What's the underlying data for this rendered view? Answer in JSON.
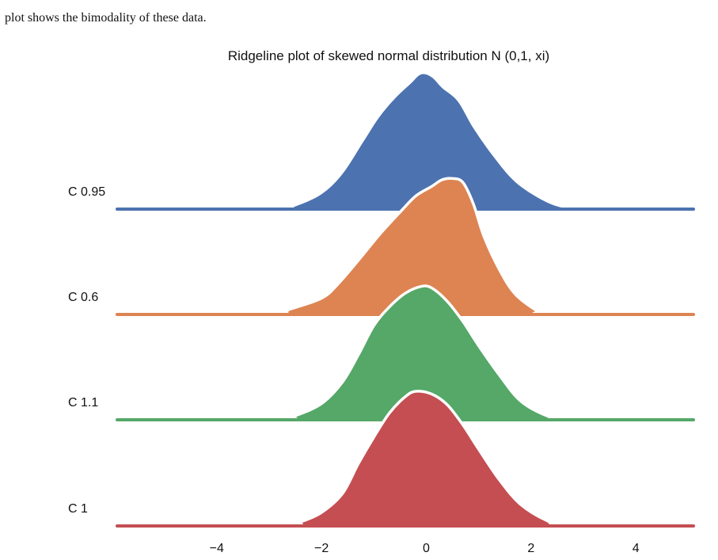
{
  "page": {
    "caption": "plot shows the bimodality of these data."
  },
  "chart_data": {
    "type": "area",
    "title": "Ridgeline plot of skewed normal distribution N (0,1, xi)",
    "xlabel": "",
    "ylabel": "",
    "xlim": [
      -5.9,
      5.1
    ],
    "x_ticks": [
      "−4",
      "−2",
      "0",
      "2",
      "4"
    ],
    "x_tick_values": [
      -4,
      -2,
      0,
      2,
      4
    ],
    "grid": false,
    "legend": "none",
    "series": [
      {
        "name": "C 0.95",
        "color": "#4C72B0",
        "density": [
          [
            -5.9,
            0
          ],
          [
            -2.8,
            0
          ],
          [
            -2.5,
            0.02
          ],
          [
            -2.0,
            0.11
          ],
          [
            -1.6,
            0.26
          ],
          [
            -1.2,
            0.5
          ],
          [
            -0.9,
            0.68
          ],
          [
            -0.6,
            0.82
          ],
          [
            -0.3,
            0.93
          ],
          [
            -0.1,
            1.0
          ],
          [
            0.1,
            0.98
          ],
          [
            0.3,
            0.9
          ],
          [
            0.6,
            0.8
          ],
          [
            0.9,
            0.6
          ],
          [
            1.3,
            0.38
          ],
          [
            1.7,
            0.2
          ],
          [
            2.2,
            0.07
          ],
          [
            2.6,
            0.01
          ],
          [
            3.0,
            0
          ],
          [
            5.1,
            0
          ]
        ]
      },
      {
        "name": "C 0.6",
        "color": "#DD8452",
        "density": [
          [
            -5.9,
            0
          ],
          [
            -3.0,
            0
          ],
          [
            -2.6,
            0.04
          ],
          [
            -2.0,
            0.12
          ],
          [
            -1.7,
            0.22
          ],
          [
            -1.3,
            0.4
          ],
          [
            -0.9,
            0.59
          ],
          [
            -0.5,
            0.76
          ],
          [
            -0.2,
            0.88
          ],
          [
            0.1,
            0.95
          ],
          [
            0.3,
            1.0
          ],
          [
            0.5,
            1.01
          ],
          [
            0.7,
            0.98
          ],
          [
            0.9,
            0.82
          ],
          [
            1.1,
            0.58
          ],
          [
            1.4,
            0.33
          ],
          [
            1.7,
            0.15
          ],
          [
            2.1,
            0.03
          ],
          [
            2.3,
            0
          ],
          [
            5.1,
            0
          ]
        ]
      },
      {
        "name": "C 1.1",
        "color": "#55A868",
        "density": [
          [
            -5.9,
            0
          ],
          [
            -2.8,
            0
          ],
          [
            -2.5,
            0.03
          ],
          [
            -2.0,
            0.12
          ],
          [
            -1.6,
            0.28
          ],
          [
            -1.3,
            0.48
          ],
          [
            -1.0,
            0.7
          ],
          [
            -0.7,
            0.84
          ],
          [
            -0.4,
            0.94
          ],
          [
            -0.1,
            0.99
          ],
          [
            0.1,
            0.98
          ],
          [
            0.4,
            0.88
          ],
          [
            0.7,
            0.73
          ],
          [
            1.0,
            0.55
          ],
          [
            1.4,
            0.33
          ],
          [
            1.8,
            0.14
          ],
          [
            2.3,
            0.03
          ],
          [
            2.7,
            0
          ],
          [
            5.1,
            0
          ]
        ]
      },
      {
        "name": "C 1",
        "color": "#C44E52",
        "density": [
          [
            -5.9,
            0
          ],
          [
            -2.7,
            0
          ],
          [
            -2.4,
            0.03
          ],
          [
            -2.0,
            0.1
          ],
          [
            -1.6,
            0.24
          ],
          [
            -1.3,
            0.46
          ],
          [
            -1.0,
            0.66
          ],
          [
            -0.7,
            0.84
          ],
          [
            -0.4,
            0.96
          ],
          [
            -0.2,
            1.0
          ],
          [
            0.1,
            0.98
          ],
          [
            0.4,
            0.9
          ],
          [
            0.7,
            0.75
          ],
          [
            1.0,
            0.57
          ],
          [
            1.4,
            0.34
          ],
          [
            1.8,
            0.16
          ],
          [
            2.3,
            0.04
          ],
          [
            2.7,
            0
          ],
          [
            5.1,
            0
          ]
        ]
      }
    ]
  }
}
